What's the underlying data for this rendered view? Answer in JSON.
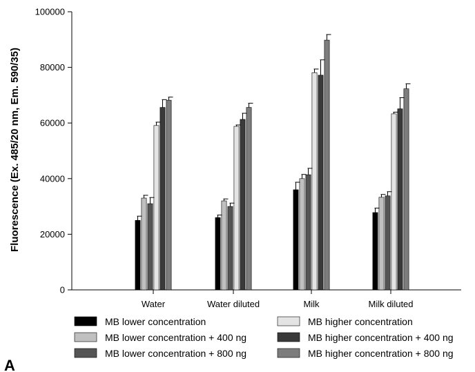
{
  "chart_data": {
    "type": "bar",
    "title": "",
    "xlabel": "",
    "ylabel": "Fluorescence (Ex. 485/20 nm, Em. 590/35)",
    "ylim": [
      0,
      100000
    ],
    "yticks": [
      0,
      20000,
      40000,
      60000,
      80000,
      100000
    ],
    "ytick_labels": [
      "0",
      "20000",
      "40000",
      "60000",
      "80000",
      "100000"
    ],
    "categories": [
      "Water",
      "Water diluted",
      "Milk",
      "Milk diluted"
    ],
    "series": [
      {
        "name": "MB lower concentration",
        "color": "#000000",
        "values": [
          25000,
          26000,
          36000,
          27800
        ],
        "errors": [
          1500,
          900,
          2700,
          1600
        ]
      },
      {
        "name": "MB lower concentration + 400 ng",
        "color": "#c0c0c0",
        "values": [
          33000,
          32000,
          40000,
          33300
        ],
        "errors": [
          1000,
          700,
          1500,
          1000
        ]
      },
      {
        "name": "MB lower concentration + 800 ng",
        "color": "#555555",
        "values": [
          31000,
          30000,
          41400,
          33800
        ],
        "errors": [
          2200,
          1200,
          2300,
          1500
        ]
      },
      {
        "name": "MB higher concentration",
        "color": "#e4e4e4",
        "values": [
          59100,
          58800,
          78100,
          63300
        ],
        "errors": [
          1200,
          500,
          1300,
          600
        ]
      },
      {
        "name": "MB higher concentration + 400 ng",
        "color": "#3a3a3a",
        "values": [
          65600,
          61300,
          77200,
          65100
        ],
        "errors": [
          2800,
          2200,
          5500,
          4000
        ]
      },
      {
        "name": "MB higher concentration + 800 ng",
        "color": "#7d7d7d",
        "values": [
          68200,
          65600,
          89800,
          72300
        ],
        "errors": [
          1100,
          1500,
          2000,
          1800
        ]
      }
    ],
    "legend": {
      "placement": "bottom",
      "columns": 2
    },
    "grid": false,
    "panel_label": "A"
  }
}
